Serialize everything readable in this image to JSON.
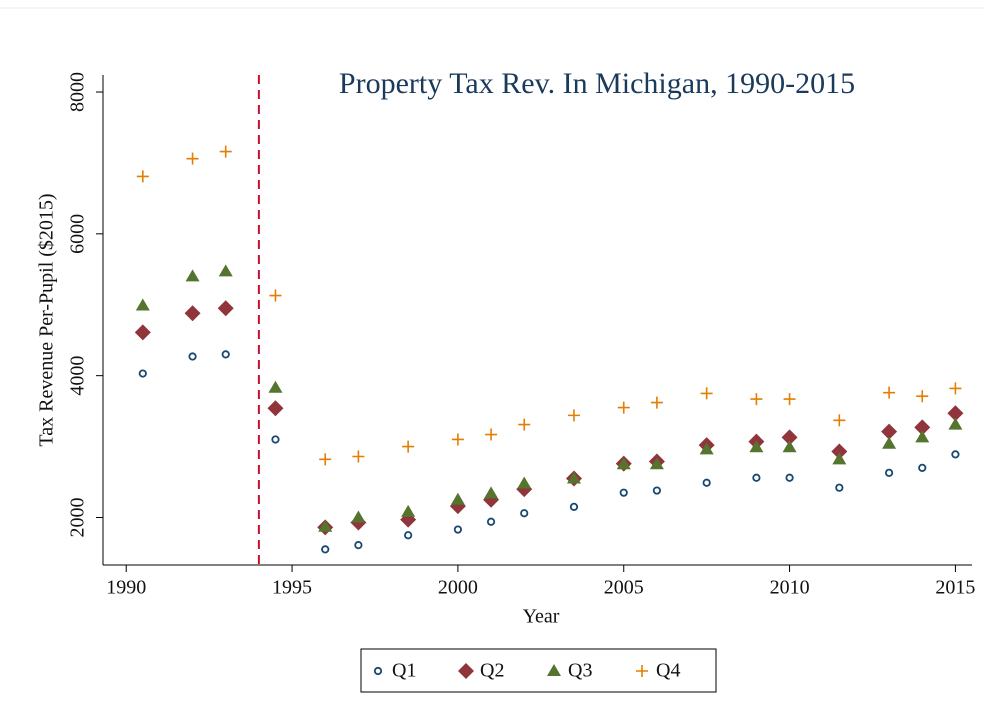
{
  "chart_data": {
    "type": "scatter",
    "title": "Property Tax Rev. In Michigan, 1990-2015",
    "x_label": "Year",
    "y_label": "Tax Revenue Per-Pupil ($2015)",
    "x": [
      1990.5,
      1992,
      1993,
      1994.5,
      1996,
      1997,
      1998.5,
      2000,
      2001,
      2002,
      2003.5,
      2005,
      2006,
      2007.5,
      2009,
      2010,
      2011.5,
      2013,
      2014,
      2015
    ],
    "series": [
      {
        "name": "Q1",
        "color": "#1a476f",
        "marker": "circle",
        "values": [
          4030,
          4270,
          4300,
          3100,
          1550,
          1610,
          1750,
          1830,
          1940,
          2060,
          2150,
          2350,
          2380,
          2490,
          2560,
          2560,
          2420,
          2630,
          2700,
          2890
        ]
      },
      {
        "name": "Q2",
        "color": "#90353b",
        "marker": "diamond",
        "values": [
          4610,
          4880,
          4950,
          3540,
          1860,
          1930,
          1970,
          2160,
          2250,
          2400,
          2550,
          2760,
          2790,
          3020,
          3070,
          3130,
          2930,
          3210,
          3270,
          3470
        ]
      },
      {
        "name": "Q3",
        "color": "#55752f",
        "marker": "triangle",
        "values": [
          4990,
          5400,
          5470,
          3830,
          1870,
          2000,
          2080,
          2250,
          2340,
          2480,
          2550,
          2750,
          2750,
          2960,
          2990,
          2990,
          2820,
          3040,
          3130,
          3310
        ]
      },
      {
        "name": "Q4",
        "color": "#e37e00",
        "marker": "plus",
        "values": [
          6810,
          7060,
          7160,
          5130,
          2820,
          2860,
          3000,
          3100,
          3170,
          3310,
          3440,
          3550,
          3620,
          3750,
          3670,
          3670,
          3370,
          3760,
          3710,
          3820
        ]
      }
    ],
    "vline": {
      "x": 1994,
      "color": "#c8102e"
    },
    "xlim": [
      1989.3,
      2015.5
    ],
    "xticks": [
      1990,
      1995,
      2000,
      2005,
      2010,
      2015
    ],
    "ylim": [
      1330,
      8240
    ],
    "yticks": [
      2000,
      4000,
      6000,
      8000
    ],
    "legend": "bottom"
  }
}
